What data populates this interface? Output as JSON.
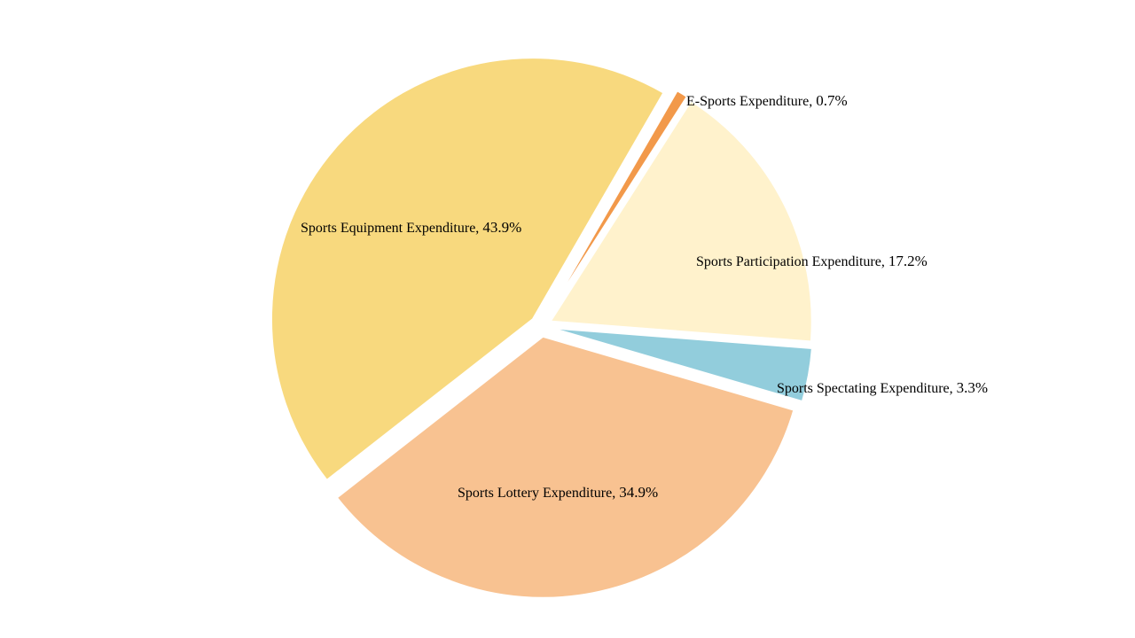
{
  "chart_data": {
    "type": "pie",
    "title": "",
    "start_angle_deg": 30,
    "direction": "clockwise",
    "slices": [
      {
        "label": "E-Sports Expenditure",
        "value": 0.7,
        "value_label": "0.7%",
        "color": "#F2994A",
        "exploded": true
      },
      {
        "label": "Sports Participation Expenditure",
        "value": 17.2,
        "value_label": "17.2%",
        "color": "#FFF2CC",
        "exploded": true
      },
      {
        "label": "Sports Spectating Expenditure",
        "value": 3.3,
        "value_label": "3.3%",
        "color": "#92CDDC",
        "exploded": true
      },
      {
        "label": "Sports Lottery Expenditure",
        "value": 34.9,
        "value_label": "34.9%",
        "color": "#F8C291",
        "exploded": true
      },
      {
        "label": "Sports Equipment Expenditure",
        "value": 43.9,
        "value_label": "43.9%",
        "color": "#F8D97E",
        "exploded": true
      }
    ],
    "legend": "none",
    "data_labels": "category-name and percentage"
  }
}
